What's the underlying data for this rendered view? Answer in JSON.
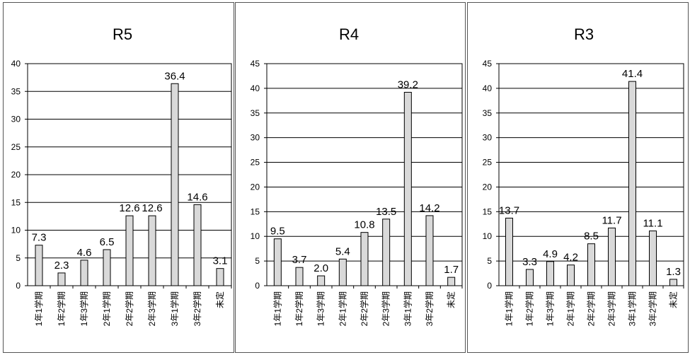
{
  "chart_data": [
    {
      "type": "bar",
      "title": "R5",
      "categories": [
        "1年1学期",
        "1年2学期",
        "1年3学期",
        "2年1学期",
        "2年2学期",
        "2年3学期",
        "3年1学期",
        "3年2学期",
        "未定"
      ],
      "values": [
        7.3,
        2.3,
        4.6,
        6.5,
        12.6,
        12.6,
        36.4,
        14.6,
        3.1
      ],
      "ylim": [
        0,
        40
      ],
      "yticks": [
        0,
        5,
        10,
        15,
        20,
        25,
        30,
        35,
        40
      ],
      "grid": true,
      "bar_color": "#d9d9d9"
    },
    {
      "type": "bar",
      "title": "R4",
      "categories": [
        "1年1学期",
        "1年2学期",
        "1年3学期",
        "2年1学期",
        "2年2学期",
        "2年3学期",
        "3年1学期",
        "3年2学期",
        "未定"
      ],
      "values": [
        9.5,
        3.7,
        2.0,
        5.4,
        10.8,
        13.5,
        39.2,
        14.2,
        1.7
      ],
      "ylim": [
        0,
        45
      ],
      "yticks": [
        0,
        5,
        10,
        15,
        20,
        25,
        30,
        35,
        40,
        45
      ],
      "grid": true,
      "bar_color": "#d9d9d9"
    },
    {
      "type": "bar",
      "title": "R3",
      "categories": [
        "1年1学期",
        "1年2学期",
        "1年3学期",
        "2年1学期",
        "2年2学期",
        "2年3学期",
        "3年1学期",
        "3年2学期",
        "未定"
      ],
      "values": [
        13.7,
        3.3,
        4.9,
        4.2,
        8.5,
        11.7,
        41.4,
        11.1,
        1.3
      ],
      "ylim": [
        0,
        45
      ],
      "yticks": [
        0,
        5,
        10,
        15,
        20,
        25,
        30,
        35,
        40,
        45
      ],
      "grid": true,
      "bar_color": "#d9d9d9"
    }
  ]
}
